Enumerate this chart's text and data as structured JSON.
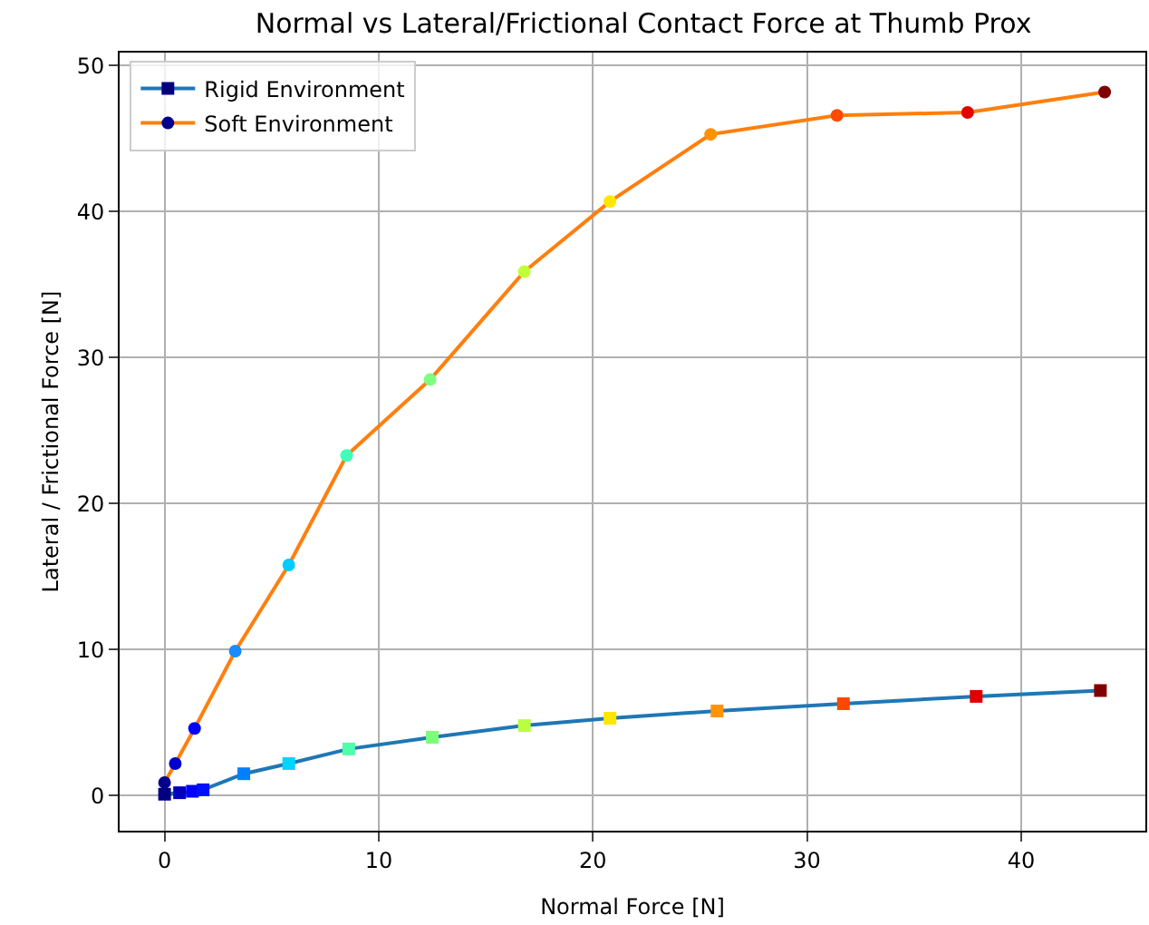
{
  "chart_data": {
    "type": "line",
    "title": "Normal vs Lateral/Frictional Contact Force at Thumb Prox",
    "xlabel": "Normal Force [N]",
    "ylabel": "Lateral / Frictional Force [N]",
    "series": [
      {
        "name": "Rigid Environment",
        "color": "#1f77b4",
        "marker": "square",
        "x": [
          0,
          0.7,
          1.3,
          1.8,
          3.7,
          5.8,
          8.6,
          12.5,
          16.8,
          20.8,
          25.8,
          31.7,
          37.9,
          43.7
        ],
        "values": [
          0.1,
          0.2,
          0.3,
          0.4,
          1.5,
          2.2,
          3.2,
          4.0,
          4.8,
          5.3,
          5.8,
          6.3,
          6.8,
          7.2
        ],
        "colors": [
          "#000080",
          "#0000c0",
          "#0000ff",
          "#0010ff",
          "#0080ff",
          "#00d4ff",
          "#4dffaa",
          "#7dff7a",
          "#b8ff3f",
          "#ffe600",
          "#ff9400",
          "#ff4700",
          "#e00000",
          "#800000"
        ]
      },
      {
        "name": "Soft Environment",
        "color": "#ff7f0e",
        "marker": "circle",
        "x": [
          0,
          0.5,
          1.4,
          3.3,
          5.8,
          8.5,
          12.4,
          16.8,
          20.8,
          25.5,
          31.4,
          37.5,
          43.9
        ],
        "values": [
          0.9,
          2.2,
          4.6,
          9.9,
          15.8,
          23.3,
          28.5,
          35.9,
          40.7,
          45.3,
          46.6,
          46.8,
          48.2
        ],
        "colors": [
          "#00008b",
          "#0000cd",
          "#0000ff",
          "#1a8cff",
          "#00ccff",
          "#40ffb8",
          "#7fff7f",
          "#c1ff36",
          "#ffe600",
          "#ff9100",
          "#ff4a00",
          "#e30000",
          "#800000"
        ]
      }
    ],
    "xlim": [
      -2.1,
      45.8
    ],
    "ylim": [
      -2.4,
      50.9
    ],
    "xticks": [
      0,
      10,
      20,
      30,
      40
    ],
    "yticks": [
      0,
      10,
      20,
      30,
      40,
      50
    ],
    "grid": true,
    "legend": "top left"
  }
}
